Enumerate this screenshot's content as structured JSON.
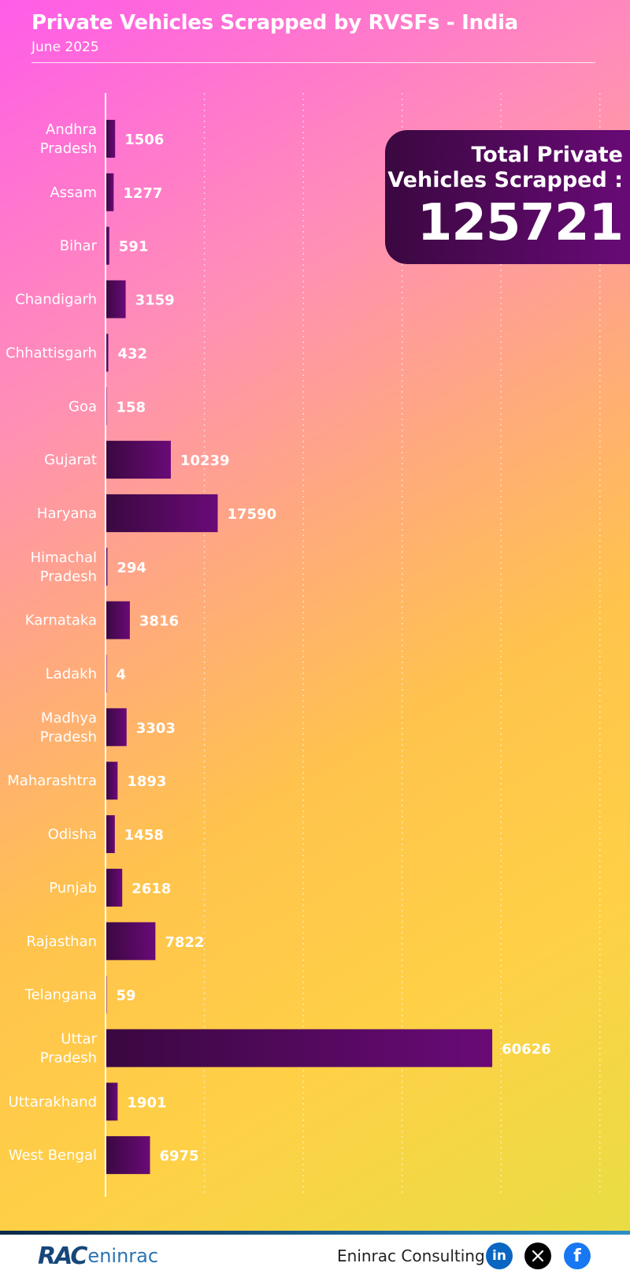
{
  "header": {
    "title": "Private Vehicles Scrapped by RVSFs - India",
    "subtitle": "June 2025"
  },
  "summary": {
    "label": "Total Private\nVehicles Scrapped :",
    "value": "125721"
  },
  "footer": {
    "brand_mark": "RAC",
    "brand_word": "eninrac",
    "company": "Eninrac Consulting",
    "icons": {
      "linkedin": "linkedin-icon",
      "x": "x-icon",
      "facebook": "facebook-icon"
    }
  },
  "chart_data": {
    "type": "bar",
    "orientation": "horizontal",
    "categories": [
      "Andhra Pradesh",
      "Assam",
      "Bihar",
      "Chandigarh",
      "Chhattisgarh",
      "Goa",
      "Gujarat",
      "Haryana",
      "Himachal Pradesh",
      "Karnataka",
      "Ladakh",
      "Madhya Pradesh",
      "Maharashtra",
      "Odisha",
      "Punjab",
      "Rajasthan",
      "Telangana",
      "Uttar Pradesh",
      "Uttarakhand",
      "West Bengal"
    ],
    "values": [
      1506,
      1277,
      591,
      3159,
      432,
      158,
      10239,
      17590,
      294,
      3816,
      4,
      3303,
      1893,
      1458,
      2618,
      7822,
      59,
      60626,
      1901,
      6975
    ],
    "title": "Private Vehicles Scrapped by RVSFs - India",
    "subtitle": "June 2025",
    "xlim": [
      0,
      80000
    ],
    "grid": true,
    "bar_gradient": [
      "#3a0840",
      "#6a0a78"
    ]
  }
}
